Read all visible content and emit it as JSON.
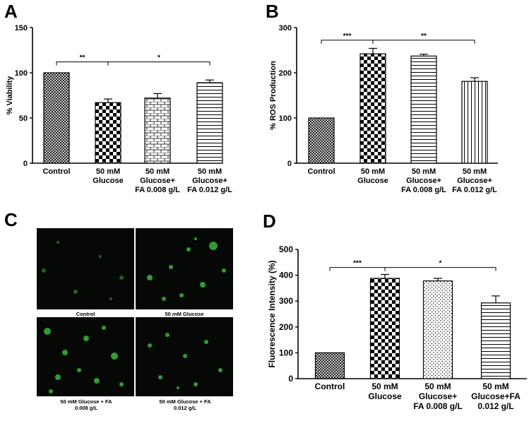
{
  "panels": {
    "a": "A",
    "b": "B",
    "c": "C",
    "d": "D"
  },
  "colors": {
    "axis": "#000000",
    "bar_fill": "#ffffff",
    "micro_bg": "#050805",
    "cell_green": "#3fbf3f"
  },
  "micrographs": {
    "captions": [
      "Control",
      "50 mM Glucose",
      "50 mM Glucose + FA 0.008 g/L",
      "50 mM Glucose + FA 0.012 g/L"
    ]
  },
  "chart_data": [
    {
      "panel": "A",
      "type": "bar",
      "ylabel": "% Viability",
      "xlabel": "",
      "ylim": [
        0,
        150
      ],
      "yticks": [
        0,
        50,
        100,
        150
      ],
      "categories": [
        "Control",
        "50 mM Glucose",
        "50 mM Glucose+ FA 0.008 g/L",
        "50 mM Glucose+ FA 0.012 g/L"
      ],
      "category_lines": [
        [
          "Control"
        ],
        [
          "50 mM",
          "Glucose"
        ],
        [
          "50 mM",
          "Glucose+",
          "FA 0.008 g/L"
        ],
        [
          "50 mM",
          "Glucose+",
          "FA 0.012 g/L"
        ]
      ],
      "values": [
        100,
        67,
        72,
        89
      ],
      "errors": [
        0,
        4,
        5,
        3
      ],
      "patterns": [
        "crosshatch",
        "checker",
        "brick",
        "hlines"
      ],
      "significance": [
        {
          "from": 0,
          "to": 1,
          "label": "**",
          "y": 112
        },
        {
          "from": 1,
          "to": 3,
          "label": "*",
          "y": 112
        }
      ]
    },
    {
      "panel": "B",
      "type": "bar",
      "ylabel": "% ROS Production",
      "xlabel": "",
      "ylim": [
        0,
        300
      ],
      "yticks": [
        0,
        100,
        200,
        300
      ],
      "categories": [
        "Control",
        "50 mM Glucose",
        "50 mM Glucose+ FA 0.008 g/L",
        "50 mM Glucose+ FA 0.012 g/L"
      ],
      "category_lines": [
        [
          "Control"
        ],
        [
          "50 mM",
          "Glucose"
        ],
        [
          "50 mM",
          "Glucose+",
          "FA 0.008 g/L"
        ],
        [
          "50 mM",
          "Glucose+",
          "FA 0.012 g/L"
        ]
      ],
      "values": [
        100,
        242,
        237,
        181
      ],
      "errors": [
        0,
        12,
        4,
        8
      ],
      "patterns": [
        "crosshatch",
        "checker",
        "hlines",
        "vlines"
      ],
      "significance": [
        {
          "from": 0,
          "to": 1,
          "label": "***",
          "y": 272
        },
        {
          "from": 1,
          "to": 3,
          "label": "**",
          "y": 272
        }
      ]
    },
    {
      "panel": "D",
      "type": "bar",
      "ylabel": "Fluorescence Intensity (%)",
      "xlabel": "",
      "ylim": [
        0,
        500
      ],
      "yticks": [
        0,
        100,
        200,
        300,
        400,
        500
      ],
      "categories": [
        "Control",
        "50 mM Glucose",
        "50 mM Glucose+ FA 0.008 g/L",
        "50 mM Glucose+FA 0.012 g/L"
      ],
      "category_lines": [
        [
          "Control"
        ],
        [
          "50 mM",
          "Glucose"
        ],
        [
          "50 mM",
          "Glucose+",
          "FA 0.008 g/L"
        ],
        [
          "50 mM",
          "Glucose+FA",
          "0.012 g/L"
        ]
      ],
      "values": [
        100,
        388,
        378,
        293
      ],
      "errors": [
        0,
        15,
        10,
        27
      ],
      "patterns": [
        "crosshatch",
        "checker",
        "dots",
        "hlines"
      ],
      "significance": [
        {
          "from": 0,
          "to": 1,
          "label": "***",
          "y": 430
        },
        {
          "from": 1,
          "to": 3,
          "label": "*",
          "y": 430
        }
      ]
    }
  ]
}
